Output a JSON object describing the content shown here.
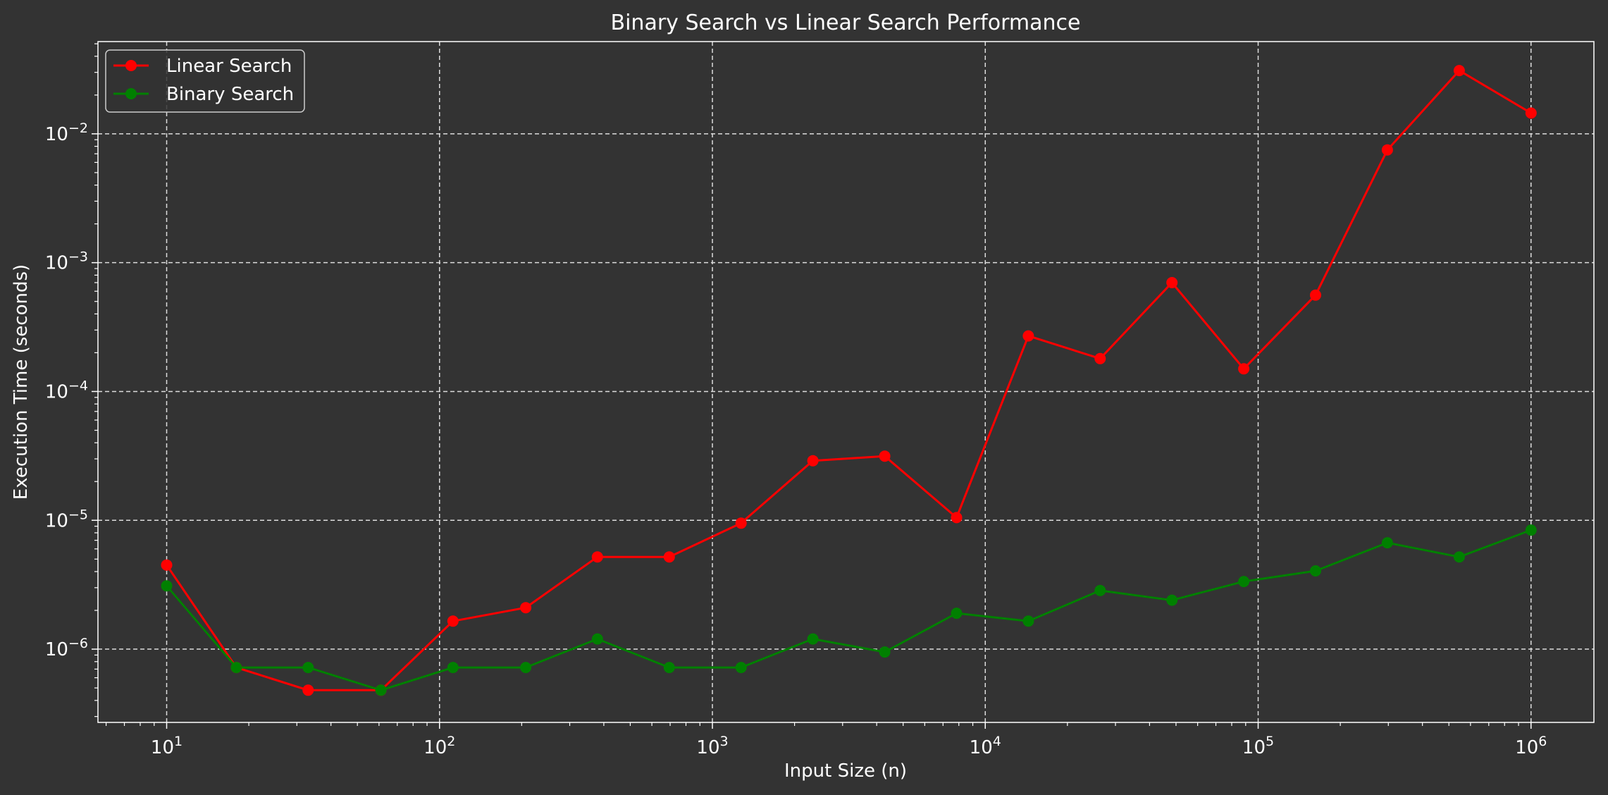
{
  "chart_data": {
    "type": "line",
    "title": "Binary Search vs Linear Search Performance",
    "xlabel": "Input Size (n)",
    "ylabel": "Execution Time (seconds)",
    "xscale": "log",
    "yscale": "log",
    "xlim": [
      5.6,
      1700000
    ],
    "ylim": [
      2.7e-07,
      0.052
    ],
    "x_ticks": [
      10,
      100,
      1000,
      10000,
      100000,
      1000000
    ],
    "y_ticks": [
      1e-06,
      1e-05,
      0.0001,
      0.001,
      0.01
    ],
    "grid": true,
    "legend_position": "upper left",
    "x": [
      10,
      18,
      33,
      61,
      112,
      207,
      379,
      695,
      1274,
      2335,
      4281,
      7847,
      14384,
      26367,
      48329,
      88587,
      162378,
      297635,
      545559,
      1000000
    ],
    "series": [
      {
        "name": "Linear Search",
        "color": "#ff0000",
        "values": [
          4.5e-06,
          7.2e-07,
          4.8e-07,
          4.8e-07,
          1.65e-06,
          2.1e-06,
          5.2e-06,
          5.2e-06,
          9.5e-06,
          2.9e-05,
          3.15e-05,
          1.05e-05,
          0.00027,
          0.00018,
          0.0007,
          0.00015,
          0.00056,
          0.0075,
          0.031,
          0.0145
        ]
      },
      {
        "name": "Binary Search",
        "color": "#008000",
        "values": [
          3.1e-06,
          7.2e-07,
          7.2e-07,
          4.8e-07,
          7.2e-07,
          7.2e-07,
          1.2e-06,
          7.2e-07,
          7.2e-07,
          1.2e-06,
          9.5e-07,
          1.9e-06,
          1.65e-06,
          2.85e-06,
          2.4e-06,
          3.35e-06,
          4.05e-06,
          6.7e-06,
          5.2e-06,
          8.4e-06
        ]
      }
    ]
  }
}
